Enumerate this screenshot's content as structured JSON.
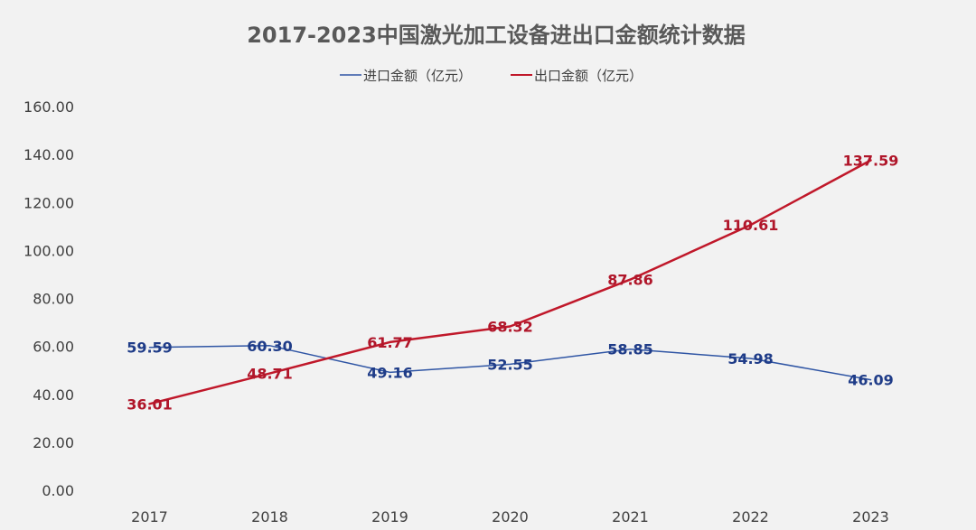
{
  "chart_data": {
    "type": "line",
    "title": "2017-2023中国激光加工设备进出口金额统计数据",
    "categories": [
      "2017",
      "2018",
      "2019",
      "2020",
      "2021",
      "2022",
      "2023"
    ],
    "series": [
      {
        "name": "进口金额（亿元）",
        "color": "#2f55a4",
        "label_color": "#1f3c88",
        "values": [
          59.59,
          60.3,
          49.16,
          52.55,
          58.85,
          54.98,
          46.09
        ],
        "labels": [
          "59.59",
          "60.30",
          "49.16",
          "52.55",
          "58.85",
          "54.98",
          "46.09"
        ]
      },
      {
        "name": "出口金额（亿元）",
        "color": "#c0182a",
        "label_color": "#b0162a",
        "values": [
          36.01,
          48.71,
          61.77,
          68.32,
          87.86,
          110.61,
          137.59
        ],
        "labels": [
          "36.01",
          "48.71",
          "61.77",
          "68.32",
          "87.86",
          "110.61",
          "137.59"
        ]
      }
    ],
    "ylim": [
      0,
      160
    ],
    "yticks": [
      "0.00",
      "20.00",
      "40.00",
      "60.00",
      "80.00",
      "100.00",
      "120.00",
      "140.00",
      "160.00"
    ],
    "grid": false,
    "legend_position": "top-center"
  }
}
